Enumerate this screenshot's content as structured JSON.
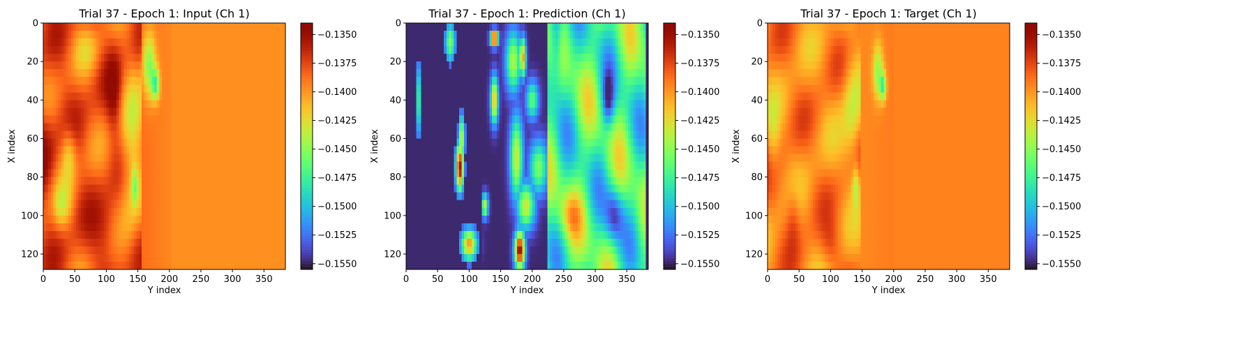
{
  "chart_data": [
    {
      "type": "heatmap",
      "title": "Trial 37 - Epoch 1: Input (Ch 1)",
      "xlabel": "Y index",
      "ylabel": "X index",
      "xlim": [
        0,
        384
      ],
      "ylim": [
        128,
        0
      ],
      "xticks": [
        0,
        50,
        100,
        150,
        200,
        250,
        300,
        350
      ],
      "yticks": [
        0,
        20,
        40,
        60,
        80,
        100,
        120
      ],
      "colormap": "turbo",
      "colorbar": {
        "vmin": -0.1555,
        "vmax": -0.134,
        "ticks": [
          -0.135,
          -0.1375,
          -0.14,
          -0.1425,
          -0.145,
          -0.1475,
          -0.15,
          -0.1525,
          -0.155
        ]
      },
      "pattern": "input"
    },
    {
      "type": "heatmap",
      "title": "Trial 37 - Epoch 1: Prediction (Ch 1)",
      "xlabel": "Y index",
      "ylabel": "X index",
      "xlim": [
        0,
        384
      ],
      "ylim": [
        128,
        0
      ],
      "xticks": [
        0,
        50,
        100,
        150,
        200,
        250,
        300,
        350
      ],
      "yticks": [
        0,
        20,
        40,
        60,
        80,
        100,
        120
      ],
      "colormap": "turbo",
      "colorbar": {
        "vmin": -0.1555,
        "vmax": -0.134,
        "ticks": [
          -0.135,
          -0.1375,
          -0.14,
          -0.1425,
          -0.145,
          -0.1475,
          -0.15,
          -0.1525,
          -0.155
        ]
      },
      "pattern": "prediction"
    },
    {
      "type": "heatmap",
      "title": "Trial 37 - Epoch 1: Target (Ch 1)",
      "xlabel": "Y index",
      "ylabel": "X index",
      "xlim": [
        0,
        384
      ],
      "ylim": [
        128,
        0
      ],
      "xticks": [
        0,
        50,
        100,
        150,
        200,
        250,
        300,
        350
      ],
      "yticks": [
        0,
        20,
        40,
        60,
        80,
        100,
        120
      ],
      "colormap": "turbo",
      "colorbar": {
        "vmin": -0.1555,
        "vmax": -0.134,
        "ticks": [
          -0.135,
          -0.1375,
          -0.14,
          -0.1425,
          -0.145,
          -0.1475,
          -0.15,
          -0.1525,
          -0.155
        ]
      },
      "pattern": "target"
    }
  ]
}
